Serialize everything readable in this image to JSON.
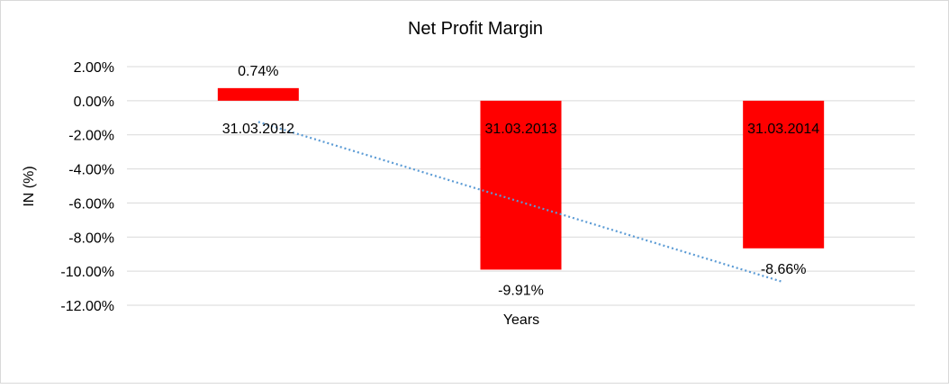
{
  "chart_data": {
    "type": "bar",
    "title": "Net Profit Margin",
    "xlabel": "Years",
    "ylabel": "IN (%)",
    "categories": [
      "31.03.2012",
      "31.03.2013",
      "31.03.2014"
    ],
    "values": [
      0.74,
      -9.91,
      -8.66
    ],
    "data_labels": [
      "0.74%",
      "-9.91%",
      "-8.66%"
    ],
    "ylim": [
      -12,
      2
    ],
    "yticks": [
      2,
      0,
      -2,
      -4,
      -6,
      -8,
      -10,
      -12
    ],
    "ytick_labels": [
      "2.00%",
      "0.00%",
      "-2.00%",
      "-4.00%",
      "-6.00%",
      "-8.00%",
      "-10.00%",
      "-12.00%"
    ],
    "grid": true,
    "trendline": {
      "type": "linear",
      "style": "dotted"
    },
    "colors": {
      "bar": "#ff0000",
      "trendline": "#5b9bd5",
      "grid": "#d9d9d9"
    }
  }
}
